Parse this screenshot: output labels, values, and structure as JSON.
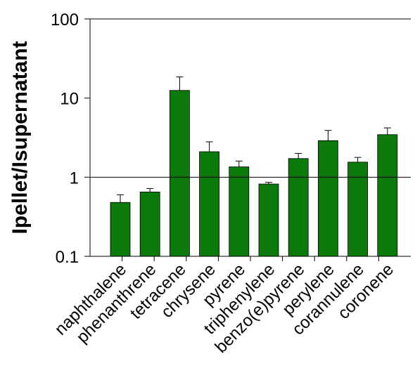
{
  "chart_data": {
    "type": "bar",
    "title": "",
    "xlabel": "",
    "ylabel": "Ipellet/Isupernatant",
    "yscale": "log",
    "ylim": [
      0.1,
      100
    ],
    "ytick_values": [
      0.1,
      1,
      10,
      100
    ],
    "ytick_labels": [
      "0.1",
      "1",
      "10",
      "100"
    ],
    "reference_line": 1,
    "grid": false,
    "bar_color": "#0b7a0b",
    "categories": [
      "naphthalene",
      "phenanthrene",
      "tetracene",
      "chrysene",
      "pyrene",
      "triphenylene",
      "benzo(e)pyrene",
      "perylene",
      "corannulene",
      "coronene"
    ],
    "values": [
      0.48,
      0.65,
      12.5,
      2.1,
      1.35,
      0.82,
      1.72,
      2.9,
      1.55,
      3.45
    ],
    "error_upper": [
      0.6,
      0.72,
      18.5,
      2.8,
      1.6,
      0.86,
      2.0,
      3.9,
      1.78,
      4.2
    ]
  }
}
